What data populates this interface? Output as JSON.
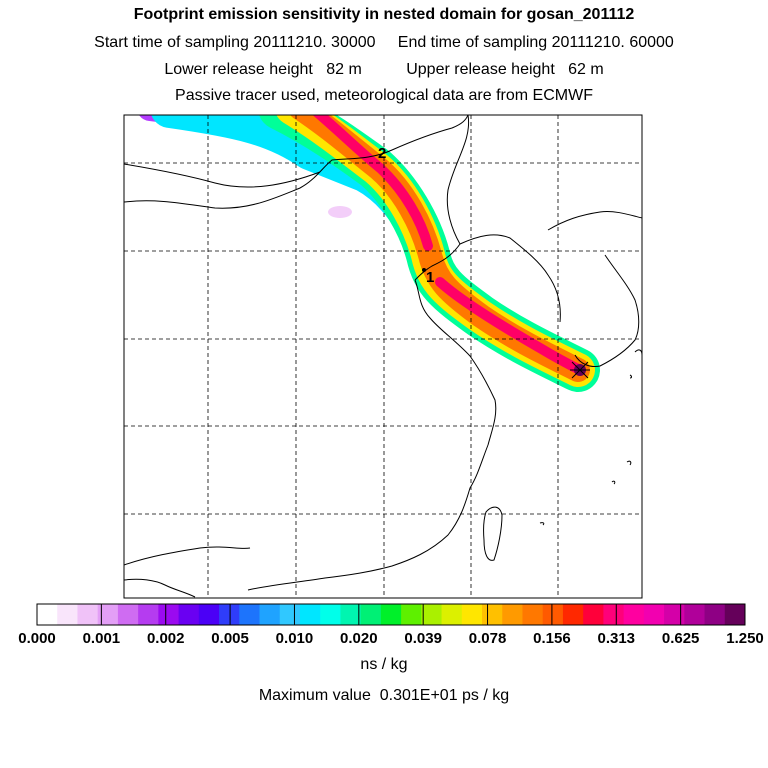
{
  "header": {
    "title": "Footprint emission sensitivity in nested domain for gosan_201112",
    "line2": "Start time of sampling 20111210. 30000     End time of sampling 20111210. 60000",
    "line3": "Lower release height   82 m          Upper release height   62 m",
    "line4": "Passive tracer used, meteorological data are from ECMWF"
  },
  "map": {
    "plume_colors": [
      "#b43cff",
      "#00e6ff",
      "#00ff99",
      "#ffe600",
      "#ff7800",
      "#ff0066"
    ],
    "labels": {
      "point_1": "1",
      "point_2": "2"
    }
  },
  "legend": {
    "colors": [
      "#ffffff",
      "#f9e5fb",
      "#f0c2f8",
      "#e39ff6",
      "#cf6cf2",
      "#b53cf0",
      "#9b0af0",
      "#6a00f2",
      "#4b00f6",
      "#2f3dfa",
      "#1d74fc",
      "#1fa3ff",
      "#30c8ff",
      "#00e6ff",
      "#00ffea",
      "#00f5b0",
      "#00f075",
      "#00f02a",
      "#5ef000",
      "#aaf000",
      "#dcf000",
      "#ffe600",
      "#ffc000",
      "#ff9a00",
      "#ff7800",
      "#ff5a00",
      "#ff2800",
      "#ff003a",
      "#ff007a",
      "#ff00a0",
      "#f200b0",
      "#d400a8",
      "#b0009a",
      "#8e0084",
      "#65005a"
    ],
    "ticks": [
      "0.000",
      "0.001",
      "0.002",
      "0.005",
      "0.010",
      "0.020",
      "0.039",
      "0.078",
      "0.156",
      "0.313",
      "0.625",
      "1.250"
    ],
    "unit": "ns / kg"
  },
  "max_value": "Maximum value  0.301E+01 ps / kg"
}
